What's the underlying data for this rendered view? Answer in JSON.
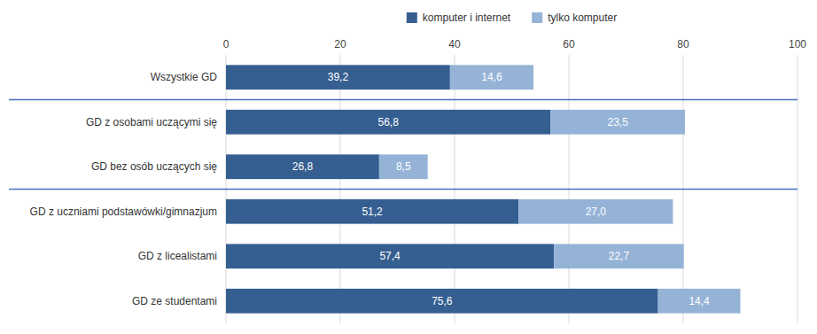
{
  "chart_data": {
    "type": "bar",
    "orientation": "horizontal",
    "stacked": true,
    "data_labels": true,
    "grid": true,
    "legend": "top",
    "categories": [
      "Wszystkie GD",
      "GD z osobami uczącymi się",
      "GD bez osób uczących się",
      "GD z uczniami podstawówki/gimnazjum",
      "GD z licealistami",
      "GD ze studentami"
    ],
    "series": [
      {
        "name": "komputer i internet",
        "color": "#365F91",
        "values": [
          39.2,
          56.8,
          26.8,
          51.2,
          57.4,
          75.6
        ],
        "value_labels": [
          "39,2",
          "56,8",
          "26,8",
          "51,2",
          "57,4",
          "75,6"
        ]
      },
      {
        "name": "tylko komputer",
        "color": "#95B3D7",
        "values": [
          14.6,
          23.5,
          8.5,
          27.0,
          22.7,
          14.4
        ],
        "value_labels": [
          "14,6",
          "23,5",
          "8,5",
          "27,0",
          "22,7",
          "14,4"
        ]
      }
    ],
    "xlim": [
      0,
      100
    ],
    "xticks": [
      0,
      20,
      40,
      60,
      80,
      100
    ]
  }
}
